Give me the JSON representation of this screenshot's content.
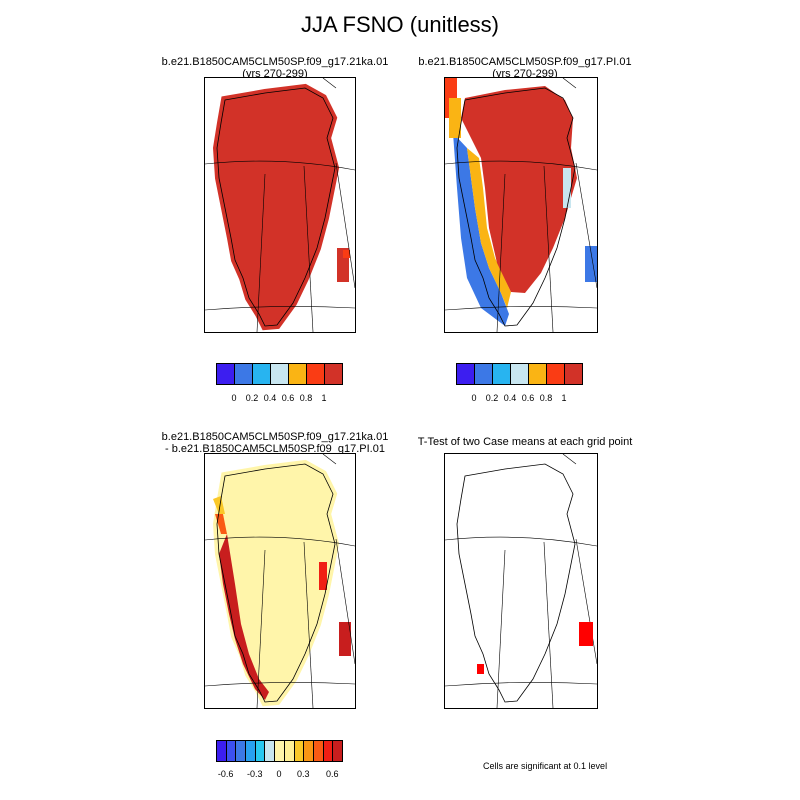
{
  "figure": {
    "title": "JJA FSNO (unitless)"
  },
  "panels": [
    {
      "id": "case1",
      "title_line1": "b.e21.B1850CAM5CLM50SP.f09_g17.21ka.01",
      "title_line2": "(yrs 270-299)",
      "description": "mean snow fraction, nearly 1 everywhere over ice sheet"
    },
    {
      "id": "case2",
      "title_line1": "b.e21.B1850CAM5CLM50SP.f09_g17.PI.01",
      "title_line2": "(yrs 270-299)",
      "description": "mean snow fraction, high interior, low along western coast"
    },
    {
      "id": "diff",
      "title_line1": "b.e21.B1850CAM5CLM50SP.f09_g17.21ka.01",
      "title_line2": "- b.e21.B1850CAM5CLM50SP.f09_g17.PI.01",
      "description": "difference field, mostly near zero with positive margins"
    },
    {
      "id": "ttest",
      "title_line1": "T-Test of two Case means at each grid point",
      "title_line2": "",
      "description": "significant cells shown in red"
    }
  ],
  "colorbar_abs": {
    "colors": [
      "#3c1ef0",
      "#3c78e6",
      "#28b4f0",
      "#c8e6f0",
      "#fab414",
      "#fa3c14",
      "#d23228"
    ],
    "labels": [
      "0",
      "0.2",
      "0.4",
      "0.6",
      "0.8",
      "1"
    ]
  },
  "colorbar_diff": {
    "colors": [
      "#3c1ef0",
      "#3c50f0",
      "#3c78e6",
      "#28a0f0",
      "#28c8f0",
      "#c8e6f0",
      "#fff5aa",
      "#fff096",
      "#fac828",
      "#fa9614",
      "#fa5a14",
      "#f01e14",
      "#c81e1e"
    ],
    "labels": [
      "-0.6",
      "-0.3",
      "0",
      "0.3",
      "0.6"
    ]
  },
  "ttest_note": "Cells are significant at 0.1 level"
}
